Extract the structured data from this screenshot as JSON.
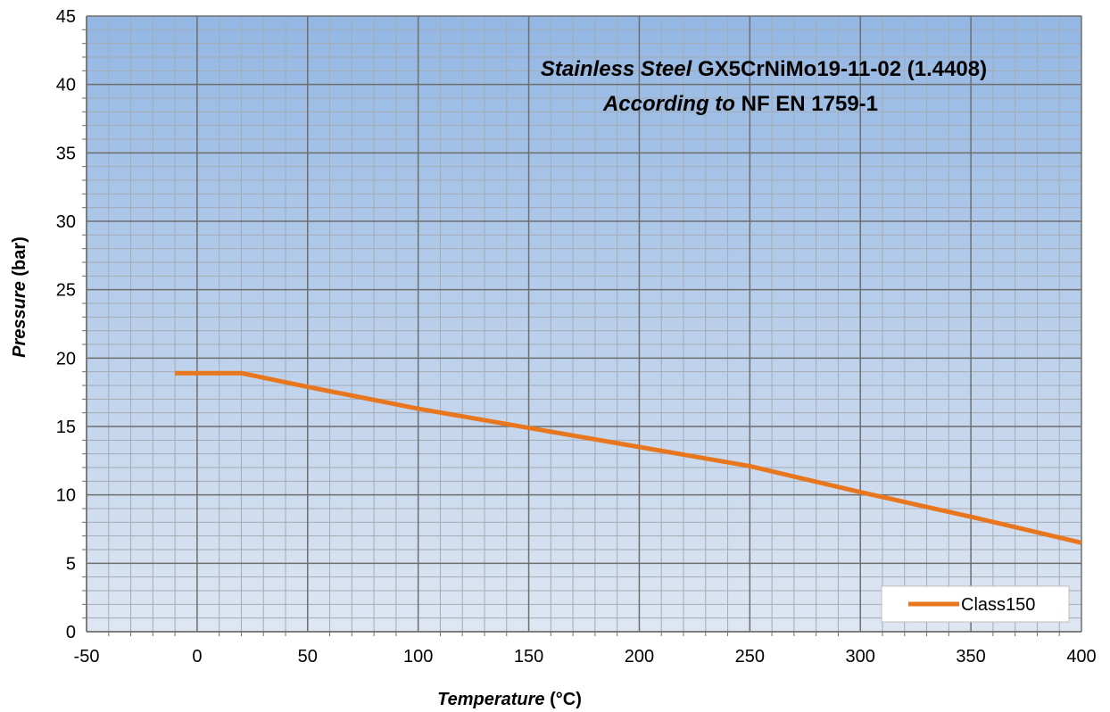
{
  "chart_data": {
    "type": "line",
    "title": "",
    "annotation": {
      "line1_italic": "Stainless Steel",
      "line1_bold": "GX5CrNiMo19-11-02 (1.4408)",
      "line2_italic": "According to",
      "line2_bold": "NF EN 1759-1"
    },
    "xlabel_italic": "Temperature",
    "xlabel_unit": "(°C)",
    "ylabel_italic": "Pressure",
    "ylabel_unit": "(bar)",
    "xlim": [
      -50,
      400
    ],
    "ylim": [
      0,
      45
    ],
    "x_major_step": 50,
    "y_major_step": 5,
    "x_minor_step": 10,
    "y_minor_step": 1,
    "x_ticks": [
      "-50",
      "0",
      "50",
      "100",
      "150",
      "200",
      "250",
      "300",
      "350",
      "400"
    ],
    "y_ticks": [
      "0",
      "5",
      "10",
      "15",
      "20",
      "25",
      "30",
      "35",
      "40",
      "45"
    ],
    "grid": true,
    "legend_position": "bottom-right",
    "series": [
      {
        "name": "Class150",
        "color": "#E8761E",
        "x": [
          -10,
          20,
          50,
          100,
          150,
          200,
          250,
          300,
          350,
          400
        ],
        "y": [
          18.9,
          18.9,
          17.9,
          16.3,
          14.9,
          13.5,
          12.1,
          10.2,
          8.4,
          6.5
        ]
      }
    ],
    "colors": {
      "plot_top": "#93B7E3",
      "plot_bottom": "#DEE6F2",
      "major_grid": "#6E6E6E",
      "minor_grid": "#A4ABB4"
    }
  }
}
